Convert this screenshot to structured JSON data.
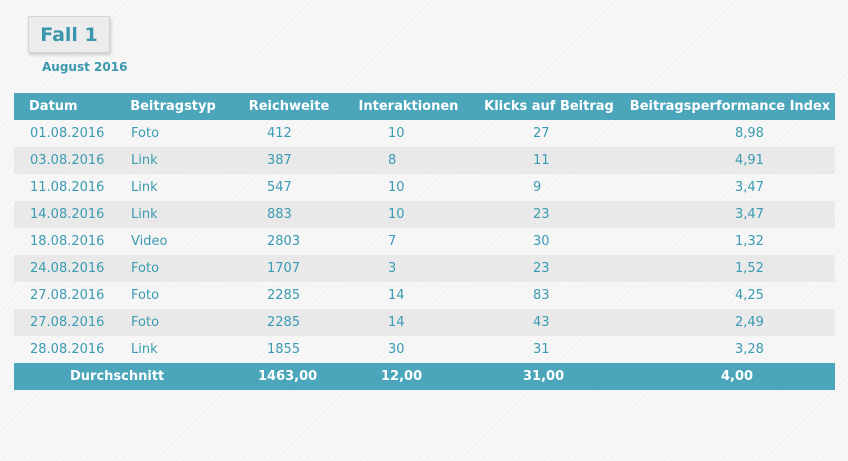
{
  "header": {
    "badge": "Fall 1",
    "subtitle": "August 2016"
  },
  "table": {
    "columns": [
      "Datum",
      "Beitragstyp",
      "Reichweite",
      "Interaktionen",
      "Klicks auf Beitrag",
      "Beitragsperformance Index"
    ],
    "rows": [
      [
        "01.08.2016",
        "Foto",
        "412",
        "10",
        "27",
        "8,98"
      ],
      [
        "03.08.2016",
        "Link",
        "387",
        "8",
        "11",
        "4,91"
      ],
      [
        "11.08.2016",
        "Link",
        "547",
        "10",
        "9",
        "3,47"
      ],
      [
        "14.08.2016",
        "Link",
        "883",
        "10",
        "23",
        "3,47"
      ],
      [
        "18.08.2016",
        "Video",
        "2803",
        "7",
        "30",
        "1,32"
      ],
      [
        "24.08.2016",
        "Foto",
        "1707",
        "3",
        "23",
        "1,52"
      ],
      [
        "27.08.2016",
        "Foto",
        "2285",
        "14",
        "83",
        "4,25"
      ],
      [
        "27.08.2016",
        "Foto",
        "2285",
        "14",
        "43",
        "2,49"
      ],
      [
        "28.08.2016",
        "Link",
        "1855",
        "30",
        "31",
        "3,28"
      ]
    ],
    "footer": {
      "label": "Durchschnitt",
      "reichweite": "1463,00",
      "interaktionen": "12,00",
      "klicks": "31,00",
      "index": "4,00"
    }
  },
  "colors": {
    "accent": "#4ba6bc",
    "text": "#3a9bb2",
    "stripe": "#e9e9e9"
  }
}
